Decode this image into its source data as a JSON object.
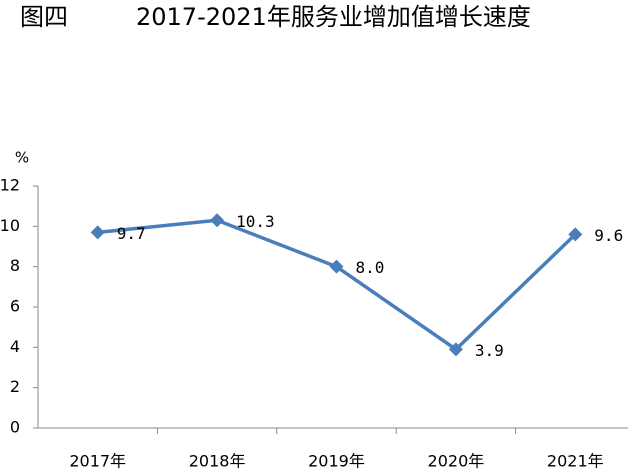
{
  "chart_data": {
    "type": "line",
    "label": "图四",
    "title": "2017-2021年服务业增加值增长速度",
    "y_label": "%",
    "categories": [
      "2017年",
      "2018年",
      "2019年",
      "2020年",
      "2021年"
    ],
    "values": [
      9.7,
      10.3,
      8.0,
      3.9,
      9.6
    ],
    "value_labels": [
      "9.7",
      "10.3",
      "8.0",
      "3.9",
      "9.6"
    ],
    "color": "#4a7ebb",
    "ylim": [
      0,
      12
    ],
    "yticks": [
      0,
      2,
      4,
      6,
      8,
      10,
      12
    ],
    "grid": false
  }
}
